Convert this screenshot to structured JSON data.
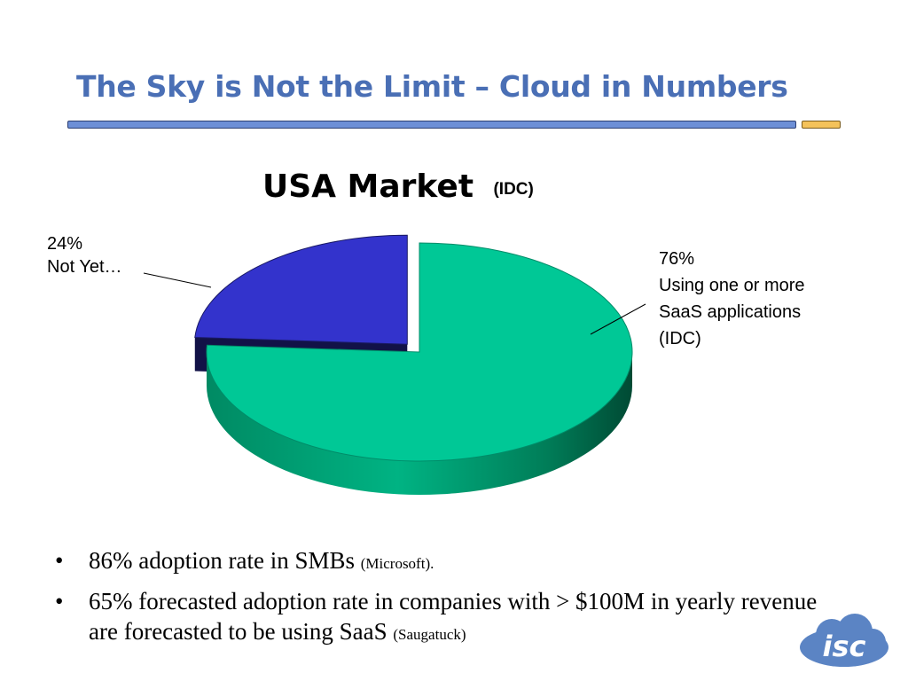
{
  "slide": {
    "title": "The Sky is Not the Limit – Cloud in Numbers",
    "accent_blue": "#6d8fd6",
    "accent_gold": "#f4c25a",
    "title_color": "#4a6fb5"
  },
  "chart_data": {
    "type": "pie",
    "title": "USA Market",
    "source": "(IDC)",
    "style": "3d-exploded",
    "slices": [
      {
        "percent_label": "76%",
        "label_lines": [
          "Using one or more",
          "SaaS applications",
          "(IDC)"
        ],
        "value": 76,
        "color": "#00c896"
      },
      {
        "percent_label": "24%",
        "label_lines": [
          "Not Yet…"
        ],
        "value": 24,
        "color": "#3333cc"
      }
    ]
  },
  "bullets": [
    {
      "bullet": "•",
      "text": " 86% adoption rate in SMBs ",
      "source": "(Microsoft)."
    },
    {
      "bullet": "•",
      "text": "65% forecasted adoption rate in companies with > $100M in yearly revenue are forecasted to be using SaaS ",
      "source": "(Saugatuck)"
    }
  ],
  "logo": {
    "text": "isc",
    "icon": "cloud-logo-icon",
    "color": "#5b84c4"
  }
}
